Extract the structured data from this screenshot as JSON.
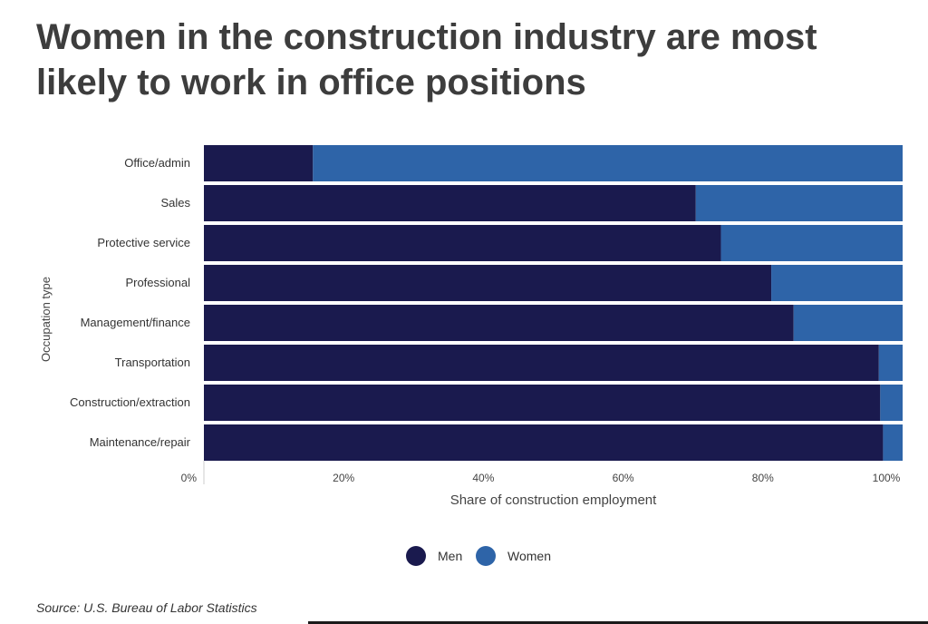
{
  "title": "Women in the construction industry are most likely to work in office positions",
  "source": "Source: U.S. Bureau of Labor Statistics",
  "colors": {
    "men": "#1a1a4e",
    "women": "#2e64a8"
  },
  "chart_data": {
    "type": "bar",
    "orientation": "horizontal",
    "stacked": true,
    "normalized": true,
    "categories": [
      "Office/admin",
      "Sales",
      "Protective service",
      "Professional",
      "Management/finance",
      "Transportation",
      "Construction/extraction",
      "Maintenance/repair"
    ],
    "series": [
      {
        "name": "Men",
        "values": [
          15.6,
          70.4,
          74.0,
          81.2,
          84.4,
          96.6,
          96.8,
          97.2
        ]
      },
      {
        "name": "Women",
        "values": [
          84.4,
          29.6,
          26.0,
          18.8,
          15.6,
          3.4,
          3.2,
          2.8
        ]
      }
    ],
    "xlabel": "Share of construction employment",
    "ylabel": "Occupation type",
    "xticks": [
      "0%",
      "20%",
      "40%",
      "60%",
      "80%",
      "100%"
    ],
    "xlim": [
      0,
      100
    ],
    "legend_position": "bottom-center",
    "grid": false
  }
}
